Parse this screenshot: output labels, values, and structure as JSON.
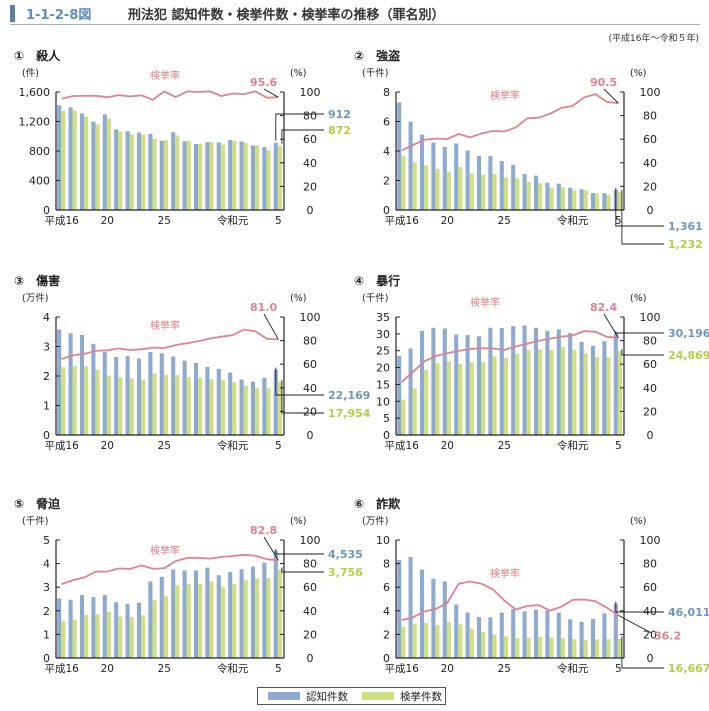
{
  "header": {
    "figure_number": "1-1-2-8図",
    "title": "刑法犯 認知件数・検挙件数・検挙率の推移（罪名別）",
    "period": "(平成16年～令和５年)"
  },
  "legend": {
    "recognized": "認知件数",
    "cleared": "検挙件数"
  },
  "colors": {
    "recognized": "#8eaad1",
    "cleared": "#cfe07f",
    "rate_line": "#e0828f",
    "recognized_label": "#6f95c4",
    "cleared_label": "#b9cc45"
  },
  "chart_data": [
    {
      "type": "bar",
      "id": "murder",
      "title": "①　殺人",
      "ylabel": "(件)",
      "y2label": "(%)",
      "ylim": [
        0,
        1600
      ],
      "yticks": [
        0,
        400,
        800,
        1200,
        1600
      ],
      "ytick_labels": [
        "0",
        "400",
        "800",
        "1,200",
        "1,600"
      ],
      "y2lim": [
        0,
        100
      ],
      "y2ticks": [
        0,
        20,
        40,
        60,
        80,
        100
      ],
      "x": [
        "平成16",
        "17",
        "18",
        "19",
        "20",
        "21",
        "22",
        "23",
        "24",
        "25",
        "26",
        "27",
        "28",
        "29",
        "30",
        "令和元",
        "2",
        "3",
        "4",
        "5"
      ],
      "xtick_labels": [
        "平成16",
        "20",
        "25",
        "令和元",
        "5"
      ],
      "series": [
        {
          "name": "認知件数",
          "values": [
            1419,
            1392,
            1310,
            1199,
            1297,
            1094,
            1068,
            1051,
            1030,
            939,
            1054,
            933,
            895,
            920,
            915,
            950,
            929,
            874,
            853,
            912
          ]
        },
        {
          "name": "検挙件数",
          "values": [
            1342,
            1345,
            1267,
            1161,
            1240,
            1066,
            1028,
            1021,
            963,
            947,
            1010,
            938,
            895,
            925,
            884,
            938,
            912,
            878,
            812,
            872
          ]
        },
        {
          "name": "検挙率",
          "axis": "right",
          "values": [
            94.3,
            96.6,
            96.7,
            96.8,
            95.6,
            97.4,
            96.3,
            97.1,
            93.5,
            100.9,
            95.8,
            100.6,
            100.0,
            100.5,
            96.6,
            98.7,
            98.2,
            100.5,
            95.2,
            95.6
          ]
        }
      ],
      "rate_label": "検挙率",
      "end_labels": {
        "recognized": "912",
        "cleared": "872",
        "rate": "95.6"
      }
    },
    {
      "type": "bar",
      "id": "robbery",
      "title": "②　強盗",
      "ylabel": "(千件)",
      "y2label": "(%)",
      "ylim": [
        0,
        8
      ],
      "yticks": [
        0,
        2,
        4,
        6,
        8
      ],
      "ytick_labels": [
        "0",
        "2",
        "4",
        "6",
        "8"
      ],
      "y2lim": [
        0,
        100
      ],
      "y2ticks": [
        0,
        20,
        40,
        60,
        80,
        100
      ],
      "x": [
        "平成16",
        "17",
        "18",
        "19",
        "20",
        "21",
        "22",
        "23",
        "24",
        "25",
        "26",
        "27",
        "28",
        "29",
        "30",
        "令和元",
        "2",
        "3",
        "4",
        "5"
      ],
      "xtick_labels": [
        "平成16",
        "20",
        "25",
        "令和元",
        "5"
      ],
      "series": [
        {
          "name": "認知件数",
          "values": [
            7.3,
            5.99,
            5.11,
            4.57,
            4.28,
            4.51,
            4.03,
            3.67,
            3.66,
            3.32,
            3.06,
            2.43,
            2.33,
            1.85,
            1.79,
            1.51,
            1.4,
            1.14,
            1.15,
            1.361
          ]
        },
        {
          "name": "検挙件数",
          "values": [
            3.68,
            3.22,
            3.03,
            2.77,
            2.57,
            2.91,
            2.48,
            2.38,
            2.45,
            2.21,
            2.13,
            1.89,
            1.82,
            1.51,
            1.54,
            1.33,
            1.33,
            1.12,
            1.03,
            1.232
          ]
        },
        {
          "name": "検挙率",
          "axis": "right",
          "values": [
            50.4,
            55.2,
            59.6,
            60.6,
            60.1,
            64.5,
            61.6,
            64.8,
            67.0,
            66.5,
            69.9,
            77.6,
            78.2,
            81.5,
            86.4,
            88.2,
            95.4,
            98.2,
            91.6,
            90.5
          ]
        }
      ],
      "rate_label": "検挙率",
      "end_labels": {
        "recognized": "1,361",
        "cleared": "1,232",
        "rate": "90.5"
      }
    },
    {
      "type": "bar",
      "id": "injury",
      "title": "③　傷害",
      "ylabel": "(万件)",
      "y2label": "(%)",
      "ylim": [
        0,
        4
      ],
      "yticks": [
        0,
        1,
        2,
        3,
        4
      ],
      "ytick_labels": [
        "0",
        "1",
        "2",
        "3",
        "4"
      ],
      "y2lim": [
        0,
        100
      ],
      "y2ticks": [
        0,
        20,
        40,
        60,
        80,
        100
      ],
      "x": [
        "平成16",
        "17",
        "18",
        "19",
        "20",
        "21",
        "22",
        "23",
        "24",
        "25",
        "26",
        "27",
        "28",
        "29",
        "30",
        "令和元",
        "2",
        "3",
        "4",
        "5"
      ],
      "xtick_labels": [
        "平成16",
        "20",
        "25",
        "令和元",
        "5"
      ],
      "series": [
        {
          "name": "認知件数",
          "values": [
            3.58,
            3.45,
            3.39,
            3.09,
            2.81,
            2.64,
            2.67,
            2.59,
            2.81,
            2.77,
            2.66,
            2.52,
            2.44,
            2.31,
            2.24,
            2.12,
            1.88,
            1.81,
            1.94,
            2.2169
          ]
        },
        {
          "name": "検挙件数",
          "values": [
            2.3,
            2.33,
            2.33,
            2.2,
            2.02,
            1.96,
            1.92,
            1.88,
            2.08,
            2.04,
            2.03,
            1.96,
            1.94,
            1.89,
            1.87,
            1.79,
            1.68,
            1.59,
            1.58,
            1.7954
          ]
        },
        {
          "name": "検挙率",
          "axis": "right",
          "values": [
            64.4,
            67.6,
            68.7,
            71.3,
            71.8,
            73.4,
            72.0,
            72.6,
            74.1,
            73.7,
            76.3,
            77.7,
            79.6,
            81.8,
            83.3,
            84.7,
            89.4,
            87.8,
            81.4,
            81.0
          ]
        }
      ],
      "rate_label": "検挙率",
      "end_labels": {
        "recognized": "22,169",
        "cleared": "17,954",
        "rate": "81.0"
      }
    },
    {
      "type": "bar",
      "id": "assault",
      "title": "④　暴行",
      "ylabel": "(千件)",
      "y2label": "(%)",
      "ylim": [
        0,
        35
      ],
      "yticks": [
        0,
        5,
        10,
        15,
        20,
        25,
        30,
        35
      ],
      "ytick_labels": [
        "0",
        "5",
        "10",
        "15",
        "20",
        "25",
        "30",
        "35"
      ],
      "y2lim": [
        0,
        100
      ],
      "y2ticks": [
        0,
        20,
        40,
        60,
        80,
        100
      ],
      "x": [
        "平成16",
        "17",
        "18",
        "19",
        "20",
        "21",
        "22",
        "23",
        "24",
        "25",
        "26",
        "27",
        "28",
        "29",
        "30",
        "令和元",
        "2",
        "3",
        "4",
        "5"
      ],
      "xtick_labels": [
        "平成16",
        "20",
        "25",
        "令和元",
        "5"
      ],
      "series": [
        {
          "name": "認知件数",
          "values": [
            23.5,
            25.7,
            30.9,
            31.8,
            31.6,
            29.8,
            29.6,
            29.3,
            31.8,
            31.7,
            32.3,
            32.5,
            31.8,
            30.9,
            31.3,
            30.3,
            27.6,
            26.4,
            27.8,
            30.196
          ]
        },
        {
          "name": "検挙件数",
          "values": [
            10.5,
            13.8,
            19.3,
            21.3,
            21.9,
            21.1,
            21.6,
            21.7,
            23.3,
            22.8,
            24.2,
            25.1,
            25.4,
            25.2,
            26.1,
            25.3,
            24.2,
            23.1,
            23.1,
            24.869
          ]
        },
        {
          "name": "検挙率",
          "axis": "right",
          "values": [
            44.8,
            53.6,
            62.5,
            67.0,
            69.3,
            71.3,
            72.8,
            73.6,
            73.3,
            72.1,
            75.0,
            77.3,
            79.8,
            81.6,
            83.4,
            84.3,
            88.0,
            87.5,
            83.1,
            82.4
          ]
        }
      ],
      "rate_label": "検挙率",
      "end_labels": {
        "recognized": "30,196",
        "cleared": "24,869",
        "rate": "82.4"
      }
    },
    {
      "type": "bar",
      "id": "intimidation",
      "title": "⑤　脅迫",
      "ylabel": "(千件)",
      "y2label": "(%)",
      "ylim": [
        0,
        5
      ],
      "yticks": [
        0,
        1,
        2,
        3,
        4,
        5
      ],
      "ytick_labels": [
        "0",
        "1",
        "2",
        "3",
        "4",
        "5"
      ],
      "y2lim": [
        0,
        100
      ],
      "y2ticks": [
        0,
        20,
        40,
        60,
        80,
        100
      ],
      "x": [
        "平成16",
        "17",
        "18",
        "19",
        "20",
        "21",
        "22",
        "23",
        "24",
        "25",
        "26",
        "27",
        "28",
        "29",
        "30",
        "令和元",
        "2",
        "3",
        "4",
        "5"
      ],
      "xtick_labels": [
        "平成16",
        "20",
        "25",
        "令和元",
        "5"
      ],
      "series": [
        {
          "name": "認知件数",
          "values": [
            2.52,
            2.47,
            2.67,
            2.58,
            2.67,
            2.36,
            2.3,
            2.34,
            3.24,
            3.44,
            3.75,
            3.71,
            3.71,
            3.83,
            3.51,
            3.64,
            3.76,
            3.87,
            4.04,
            4.535
          ]
        },
        {
          "name": "検挙件数",
          "values": [
            1.58,
            1.62,
            1.82,
            1.86,
            1.95,
            1.76,
            1.73,
            1.81,
            2.46,
            2.62,
            3.08,
            3.14,
            3.15,
            3.25,
            3.0,
            3.14,
            3.3,
            3.37,
            3.38,
            3.756
          ]
        },
        {
          "name": "検挙率",
          "axis": "right",
          "values": [
            62.6,
            66.0,
            68.3,
            73.3,
            73.2,
            75.9,
            75.4,
            78.6,
            75.5,
            76.1,
            82.1,
            84.8,
            84.8,
            84.2,
            85.6,
            86.4,
            87.5,
            86.6,
            83.7,
            82.8
          ]
        }
      ],
      "rate_label": "検挙率",
      "end_labels": {
        "recognized": "4,535",
        "cleared": "3,756",
        "rate": "82.8"
      }
    },
    {
      "type": "bar",
      "id": "fraud",
      "title": "⑥　詐欺",
      "ylabel": "(万件)",
      "y2label": "(%)",
      "ylim": [
        0,
        10
      ],
      "yticks": [
        0,
        2,
        4,
        6,
        8,
        10
      ],
      "ytick_labels": [
        "0",
        "2",
        "4",
        "6",
        "8",
        "10"
      ],
      "y2lim": [
        0,
        100
      ],
      "y2ticks": [
        0,
        20,
        40,
        60,
        80,
        100
      ],
      "x": [
        "平成16",
        "17",
        "18",
        "19",
        "20",
        "21",
        "22",
        "23",
        "24",
        "25",
        "26",
        "27",
        "28",
        "29",
        "30",
        "令和元",
        "2",
        "3",
        "4",
        "5"
      ],
      "xtick_labels": [
        "平成16",
        "20",
        "25",
        "令和元",
        "5"
      ],
      "series": [
        {
          "name": "認知件数",
          "values": [
            8.3,
            8.56,
            7.5,
            6.72,
            6.49,
            4.53,
            3.86,
            3.47,
            3.45,
            3.84,
            4.15,
            3.94,
            4.1,
            4.02,
            3.85,
            3.28,
            3.07,
            3.31,
            3.77,
            4.6011
          ]
        },
        {
          "name": "検挙件数",
          "values": [
            2.65,
            2.91,
            2.96,
            2.78,
            3.04,
            2.85,
            2.49,
            2.22,
            1.99,
            1.83,
            1.7,
            1.73,
            1.8,
            1.73,
            1.68,
            1.59,
            1.52,
            1.58,
            1.6,
            1.6667
          ]
        },
        {
          "name": "検挙率",
          "axis": "right",
          "values": [
            32.1,
            34.5,
            39.5,
            41.5,
            46.8,
            63.0,
            64.8,
            63.0,
            58.1,
            48.7,
            41.1,
            44.1,
            44.8,
            40.2,
            43.4,
            49.3,
            49.6,
            48.1,
            42.5,
            36.2
          ]
        }
      ],
      "rate_label": "検挙率",
      "end_labels": {
        "recognized": "46,011",
        "cleared": "16,667",
        "rate": "36.2"
      }
    }
  ]
}
